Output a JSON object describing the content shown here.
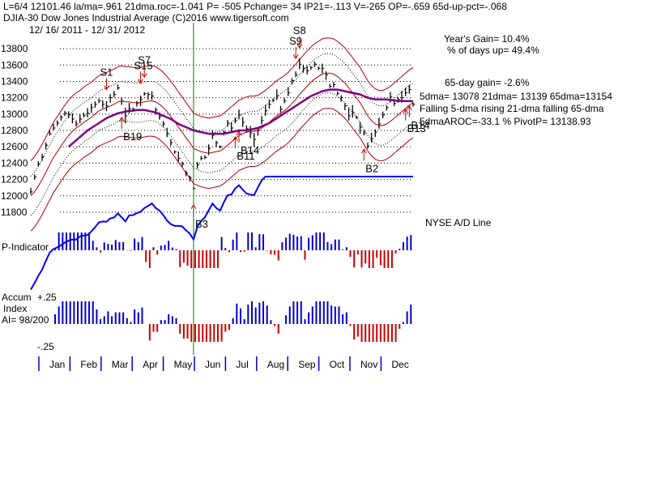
{
  "header": {
    "line1": "L=6/4   12101.46   la/ma=.961  21dma.roc=-1.041  P= -505  Pchange=   34  IP21=-.113  V=-265  OP=-.659  65d-up-pct=-.068",
    "line2": "DJIA-30   Dow Jones Industrial Average   (C)2016 www.tigersoft.com",
    "line3": "12/ 16/ 2011 - 12/ 31/ 2012"
  },
  "stats": {
    "years_gain": "Year's Gain= 10.4%",
    "days_up": "% of days up= 49.4%",
    "gain65": "65-day gain= -2.6%",
    "dma_line": "5dma= 13078  21dma= 13139  65dma=13154",
    "trend_line": "Falling 5-dma  rising 21-dma  falling 65-dma",
    "aroc_line": "5dmaAROC=-33.1  %   PivotP= 13138.93"
  },
  "panels": {
    "ad_label": "NYSE A/D Line",
    "pind_label": "P-Indicator",
    "accum_label1": "Accum",
    "accum_label2": "Index",
    "accum_label3": "AI= 98/200",
    "accum_top": "+.25",
    "accum_bottom": "-.25"
  },
  "colors": {
    "price_bar": "#000000",
    "band_outer": "#b00000",
    "band_inner": "#000000",
    "ma65": "#800080",
    "ad_line": "#0000ff",
    "pos_hist": "#0000cc",
    "neg_hist": "#cc0000",
    "marker_vline": "#008000",
    "buy_arrow": "#cc0000",
    "sell_arrow": "#cc0000",
    "b_arrow_alt": "#800080"
  },
  "chart_data": {
    "type": "line",
    "title": "DJIA-30 Dow Jones Industrial Average",
    "ylim": [
      11800,
      13900
    ],
    "yticks": [
      11800,
      12000,
      12200,
      12400,
      12600,
      12800,
      13000,
      13200,
      13400,
      13600,
      13800
    ],
    "months": [
      "Jan",
      "Feb",
      "Mar",
      "Apr",
      "May",
      "Jun",
      "Jul",
      "Aug",
      "Sep",
      "Oct",
      "Nov",
      "Dec"
    ],
    "close": [
      12050,
      12230,
      12390,
      12480,
      12620,
      12760,
      12830,
      12890,
      12960,
      13010,
      12990,
      12940,
      12880,
      12940,
      12980,
      13010,
      13080,
      13120,
      13160,
      13120,
      13100,
      13200,
      13240,
      13320,
      13160,
      12980,
      13070,
      13060,
      13130,
      13180,
      13250,
      13240,
      13220,
      13050,
      12970,
      12880,
      12760,
      12650,
      12540,
      12460,
      12390,
      12280,
      12220,
      12090,
      12380,
      12460,
      12470,
      12580,
      12740,
      12650,
      12600,
      12780,
      12890,
      12830,
      12920,
      12990,
      12900,
      12820,
      12770,
      12690,
      12800,
      12920,
      13040,
      13120,
      13170,
      13220,
      13060,
      13160,
      13260,
      13410,
      13480,
      13610,
      13560,
      13530,
      13570,
      13610,
      13560,
      13560,
      13480,
      13340,
      13360,
      13250,
      13200,
      13100,
      12980,
      13020,
      12960,
      12840,
      12770,
      12610,
      12700,
      12780,
      12880,
      12990,
      13080,
      13210,
      13130,
      13180,
      13200,
      13260,
      13300,
      13120
    ],
    "ma21": [
      12000,
      12050,
      12120,
      12200,
      12290,
      12380,
      12470,
      12540,
      12610,
      12680,
      12740,
      12790,
      12830,
      12860,
      12900,
      12930,
      12960,
      13000,
      13040,
      13060,
      13080,
      13100,
      13120,
      13150,
      13160,
      13150,
      13150,
      13140,
      13140,
      13140,
      13150,
      13160,
      13160,
      13150,
      13120,
      13080,
      13030,
      12970,
      12910,
      12840,
      12780,
      12710,
      12650,
      12580,
      12560,
      12540,
      12530,
      12520,
      12530,
      12540,
      12550,
      12580,
      12620,
      12660,
      12700,
      12740,
      12760,
      12780,
      12790,
      12790,
      12800,
      12830,
      12860,
      12900,
      12940,
      12980,
      13010,
      13040,
      13080,
      13130,
      13180,
      13240,
      13290,
      13340,
      13390,
      13430,
      13460,
      13490,
      13500,
      13500,
      13490,
      13460,
      13420,
      13380,
      13320,
      13260,
      13200,
      13140,
      13060,
      12980,
      12920,
      12880,
      12860,
      12860,
      12880,
      12910,
      12950,
      12990,
      13030,
      13070,
      13110,
      13139
    ],
    "ma65": [
      null,
      null,
      null,
      null,
      null,
      null,
      null,
      null,
      null,
      null,
      12600,
      12640,
      12680,
      12720,
      12760,
      12800,
      12830,
      12860,
      12890,
      12920,
      12950,
      12970,
      12990,
      13010,
      13020,
      13030,
      13040,
      13040,
      13050,
      13050,
      13050,
      13040,
      13030,
      13020,
      13000,
      12980,
      12960,
      12940,
      12910,
      12880,
      12860,
      12840,
      12820,
      12800,
      12790,
      12780,
      12770,
      12760,
      12760,
      12760,
      12760,
      12760,
      12770,
      12780,
      12790,
      12800,
      12800,
      12800,
      12810,
      12820,
      12830,
      12850,
      12870,
      12890,
      12920,
      12950,
      12980,
      13010,
      13040,
      13070,
      13100,
      13130,
      13160,
      13190,
      13220,
      13240,
      13260,
      13280,
      13290,
      13300,
      13300,
      13300,
      13290,
      13280,
      13270,
      13260,
      13250,
      13240,
      13220,
      13200,
      13190,
      13180,
      13180,
      13180,
      13180,
      13170,
      13170,
      13160,
      13160,
      13160,
      13160,
      13154
    ],
    "events": [
      {
        "label": "S1",
        "kind": "sell",
        "day": 20
      },
      {
        "label": "S7",
        "kind": "sell",
        "day": 30
      },
      {
        "label": "S15",
        "kind": "sell",
        "day": 29
      },
      {
        "label": "B19",
        "kind": "buy",
        "day": 24
      },
      {
        "label": "B3",
        "kind": "buy",
        "day": 43
      },
      {
        "label": "B11",
        "kind": "buy",
        "day": 54
      },
      {
        "label": "B14",
        "kind": "buy",
        "day": 55
      },
      {
        "label": "S9",
        "kind": "sell",
        "day": 70
      },
      {
        "label": "S8",
        "kind": "sell",
        "day": 71
      },
      {
        "label": "B2",
        "kind": "buy",
        "day": 88
      },
      {
        "label": "B13",
        "kind": "buy",
        "day": 99
      },
      {
        "label": "B14",
        "kind": "buy",
        "day": 100
      }
    ]
  }
}
